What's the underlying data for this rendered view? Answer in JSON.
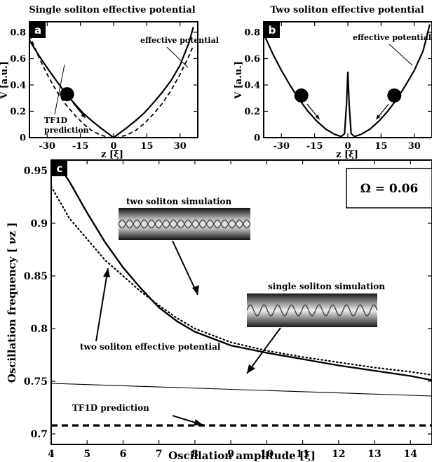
{
  "chart_data": [
    {
      "type": "line",
      "panel_label": "a",
      "title": "Single soliton effective potential",
      "xlabel": "z [ξ]",
      "ylabel": "V [a.u.]",
      "xlim": [
        -38,
        38
      ],
      "ylim": [
        0,
        0.88
      ],
      "xticks": [
        -30,
        -15,
        0,
        15,
        30
      ],
      "yticks": [
        0,
        0.2,
        0.4,
        0.6,
        0.8
      ],
      "xtick_labels": [
        "-30",
        "-15",
        "0",
        "15",
        "30"
      ],
      "ytick_labels": [
        "0",
        "0.2",
        "0.4",
        "0.6",
        "0.8"
      ],
      "series": [
        {
          "style": "solid",
          "x": [
            -38,
            -34,
            -30,
            -26,
            -22,
            -18,
            -14,
            -10,
            -6,
            -2,
            0,
            2,
            6,
            10,
            14,
            18,
            22,
            26,
            30,
            34,
            36
          ],
          "y": [
            0.74,
            0.63,
            0.53,
            0.435,
            0.345,
            0.265,
            0.19,
            0.13,
            0.075,
            0.025,
            0.0,
            0.025,
            0.075,
            0.13,
            0.19,
            0.265,
            0.345,
            0.435,
            0.55,
            0.72,
            0.84
          ]
        },
        {
          "style": "dashed",
          "x": [
            -38,
            -34,
            -30,
            -26,
            -22,
            -18,
            -14,
            -10,
            -6,
            -2,
            0,
            2,
            6,
            10,
            14,
            18,
            22,
            26,
            30,
            34,
            36
          ],
          "y": [
            0.78,
            0.62,
            0.48,
            0.36,
            0.26,
            0.18,
            0.11,
            0.055,
            0.02,
            0.002,
            0.0,
            0.002,
            0.02,
            0.055,
            0.11,
            0.18,
            0.26,
            0.36,
            0.48,
            0.62,
            0.7
          ]
        }
      ],
      "annotations": [
        {
          "text": "effective potential"
        },
        {
          "text": "TF1D"
        },
        {
          "text": "prediction"
        }
      ],
      "ball": {
        "x": -21,
        "y": 0.33
      }
    },
    {
      "type": "line",
      "panel_label": "b",
      "title": "Two soliton effective potential",
      "xlabel": "z [ξ]",
      "ylabel": "V [a.u.]",
      "xlim": [
        -38,
        38
      ],
      "ylim": [
        0,
        0.88
      ],
      "xticks": [
        -30,
        -15,
        0,
        15,
        30
      ],
      "yticks": [
        0,
        0.2,
        0.4,
        0.6,
        0.8
      ],
      "xtick_labels": [
        "-30",
        "-15",
        "0",
        "15",
        "30"
      ],
      "ytick_labels": [
        "0",
        "0.2",
        "0.4",
        "0.6",
        "0.8"
      ],
      "series": [
        {
          "style": "solid",
          "x": [
            -38,
            -34,
            -30,
            -26,
            -22,
            -18,
            -14,
            -10,
            -6,
            -3,
            -1.5,
            -0.6,
            0,
            0.6,
            1.5,
            3,
            6,
            10,
            14,
            18,
            22,
            26,
            30,
            34,
            37
          ],
          "y": [
            0.79,
            0.64,
            0.51,
            0.395,
            0.29,
            0.2,
            0.125,
            0.065,
            0.025,
            0.008,
            0.03,
            0.25,
            0.5,
            0.25,
            0.03,
            0.008,
            0.025,
            0.065,
            0.125,
            0.2,
            0.29,
            0.395,
            0.51,
            0.66,
            0.86
          ]
        }
      ],
      "annotations": [
        {
          "text": "effective potential"
        }
      ],
      "balls": [
        {
          "x": -21,
          "y": 0.32
        },
        {
          "x": 21,
          "y": 0.32
        }
      ]
    },
    {
      "type": "line",
      "panel_label": "c",
      "xlabel": "Oscillation amplitude  [ξ]",
      "ylabel": "Oscillation frequency  [ νz ]",
      "xlim": [
        4,
        14.6
      ],
      "ylim": [
        0.69,
        0.96
      ],
      "xticks": [
        4,
        5,
        6,
        7,
        8,
        9,
        10,
        11,
        12,
        13,
        14
      ],
      "yticks": [
        0.7,
        0.75,
        0.8,
        0.85,
        0.9,
        0.95
      ],
      "xtick_labels": [
        "4",
        "5",
        "6",
        "7",
        "8",
        "9",
        "10",
        "11",
        "12",
        "13",
        "14"
      ],
      "ytick_labels": [
        "0.7",
        "0.75",
        "0.8",
        "0.85",
        "0.9",
        "0.95"
      ],
      "series": [
        {
          "style": "solid-thick",
          "x": [
            4.2,
            4.5,
            5,
            5.5,
            6,
            6.5,
            7,
            7.5,
            8,
            9,
            10,
            11,
            12,
            13,
            14,
            14.6
          ],
          "y": [
            0.955,
            0.94,
            0.91,
            0.882,
            0.858,
            0.838,
            0.82,
            0.807,
            0.797,
            0.784,
            0.777,
            0.771,
            0.765,
            0.76,
            0.755,
            0.751
          ]
        },
        {
          "style": "dotted",
          "x": [
            4,
            4.5,
            5,
            5.5,
            6,
            6.5,
            7,
            7.5,
            8,
            9,
            10,
            11,
            12,
            13,
            14,
            14.6
          ],
          "y": [
            0.935,
            0.905,
            0.885,
            0.865,
            0.85,
            0.835,
            0.822,
            0.81,
            0.8,
            0.787,
            0.779,
            0.773,
            0.768,
            0.763,
            0.759,
            0.756
          ]
        },
        {
          "style": "solid-thin",
          "x": [
            4,
            14.6
          ],
          "y": [
            0.748,
            0.736
          ]
        },
        {
          "style": "dashed",
          "x": [
            4,
            14.6
          ],
          "y": [
            0.708,
            0.708
          ]
        }
      ],
      "annotations": [
        {
          "text": "two soliton simulation"
        },
        {
          "text": "single soliton simulation"
        },
        {
          "text": "two soliton effective potential"
        },
        {
          "text": "TF1D prediction"
        }
      ],
      "legend_box": "Ω = 0.06"
    }
  ]
}
